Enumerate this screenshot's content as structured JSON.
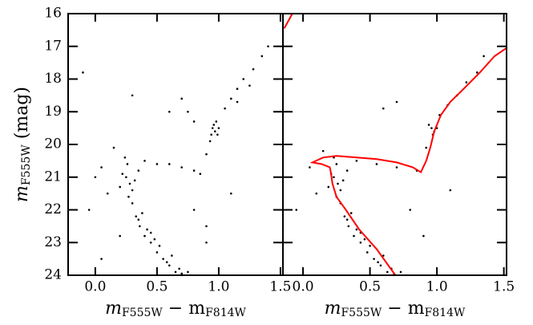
{
  "chart_data": [
    {
      "type": "scatter",
      "ylabel": {
        "base": "m",
        "subscript": "F555W",
        "suffix": " (mag)"
      },
      "xlabel": {
        "base": "m",
        "subscript": "F555W",
        "middle": " − m",
        "subscript2": "F814W"
      },
      "xlim": [
        -0.22,
        1.52
      ],
      "ylim": [
        24,
        16
      ],
      "xticks": [
        {
          "value": 0,
          "label": "0.0"
        },
        0.5,
        {
          "value": 1,
          "label": "1.0"
        },
        1.5
      ],
      "yticks": [
        16,
        17,
        18,
        19,
        20,
        21,
        22,
        23,
        24
      ],
      "series": [
        {
          "color": "#000000",
          "x": [
            0.3,
            0.33,
            0.36,
            0.4,
            0.45,
            0.5,
            0.55,
            0.6,
            0.65,
            0.7,
            0.62,
            0.52,
            0.42,
            0.35,
            0.38,
            0.48,
            0.58,
            0.68,
            0.75,
            0.45,
            0.25,
            0.28,
            0.22,
            0.3,
            0.26,
            0.32,
            0.2,
            0.27,
            0.24,
            0.35,
            0.4,
            0.5,
            0.6,
            0.7,
            0.8,
            0.85,
            0.9,
            0.93,
            0.98,
            1.05,
            1.1,
            1.15,
            1.2,
            1.28,
            1.35,
            1.4,
            1.25,
            1.15,
            0.95,
            0.97,
            0.99,
            0.96,
            1.0,
            0.94,
            0.0,
            0.05,
            0.1,
            -0.05,
            0.15,
            0.2,
            0.05,
            0.8,
            0.9,
            1.1,
            0.6,
            0.3,
            -0.1,
            0.9,
            0.7,
            0.75,
            0.8
          ],
          "values": [
            21.8,
            22.2,
            22.5,
            22.8,
            23.0,
            23.3,
            23.5,
            23.7,
            23.9,
            23.95,
            23.4,
            23.1,
            22.6,
            22.3,
            22.1,
            22.9,
            23.6,
            23.8,
            23.9,
            22.7,
            21.0,
            21.2,
            20.9,
            21.4,
            20.6,
            21.1,
            21.3,
            21.6,
            20.4,
            20.8,
            20.5,
            20.6,
            20.6,
            20.7,
            20.8,
            20.9,
            20.3,
            19.9,
            19.3,
            18.9,
            18.6,
            18.3,
            18.0,
            17.7,
            17.3,
            17.0,
            18.2,
            18.7,
            19.5,
            19.6,
            19.7,
            19.4,
            19.5,
            19.7,
            21.0,
            20.7,
            21.5,
            22.0,
            20.1,
            22.8,
            23.5,
            22.0,
            22.5,
            21.5,
            19.0,
            18.5,
            17.8,
            23.0,
            18.6,
            19.0,
            19.3
          ]
        }
      ]
    },
    {
      "type": "scatter",
      "xlabel": {
        "base": "m",
        "subscript": "F555W",
        "middle": " − m",
        "subscript2": "F814W"
      },
      "xlim": [
        -0.15,
        1.52
      ],
      "ylim": [
        24,
        16
      ],
      "xticks": [
        {
          "value": 0,
          "label": "0.0"
        },
        0.5,
        {
          "value": 1,
          "label": "1.0"
        },
        1.5
      ],
      "yticks": [
        16,
        17,
        18,
        19,
        20,
        21,
        22,
        23,
        24
      ],
      "series": [
        {
          "color": "#000000",
          "x": [
            0.28,
            0.31,
            0.34,
            0.38,
            0.43,
            0.48,
            0.53,
            0.58,
            0.63,
            0.68,
            0.6,
            0.5,
            0.4,
            0.33,
            0.36,
            0.46,
            0.56,
            0.66,
            0.73,
            0.43,
            0.23,
            0.26,
            0.21,
            0.28,
            0.25,
            0.3,
            0.19,
            0.25,
            0.23,
            0.33,
            0.4,
            0.55,
            0.7,
            0.85,
            0.92,
            0.97,
            1.02,
            1.08,
            1.15,
            1.22,
            1.3,
            0.96,
            0.98,
            0.94,
            0.97,
            1.0,
            0.05,
            0.1,
            -0.05,
            0.15,
            0.8,
            1.1,
            0.6,
            1.35,
            0.9,
            0.7
          ],
          "values": [
            21.8,
            22.2,
            22.5,
            22.8,
            23.0,
            23.3,
            23.5,
            23.7,
            23.9,
            23.95,
            23.4,
            23.1,
            22.6,
            22.3,
            22.1,
            22.9,
            23.6,
            23.8,
            23.9,
            22.7,
            21.0,
            21.2,
            20.9,
            21.4,
            20.6,
            21.1,
            21.3,
            21.6,
            20.4,
            20.8,
            20.5,
            20.6,
            20.7,
            20.8,
            20.1,
            19.7,
            19.1,
            18.8,
            18.5,
            18.1,
            17.8,
            19.5,
            19.6,
            19.4,
            19.7,
            19.5,
            20.7,
            21.5,
            22.0,
            20.2,
            22.0,
            21.4,
            18.9,
            17.3,
            22.8,
            18.7
          ]
        },
        {
          "color": "#ff0000",
          "kind": "line",
          "x": [
            0.69,
            0.55,
            0.42,
            0.32,
            0.25,
            0.22,
            0.21,
            0.2,
            0.14,
            0.07,
            0.15,
            0.25,
            0.4,
            0.55,
            0.7,
            0.82,
            0.88,
            0.92,
            0.95,
            0.98,
            1.03,
            1.1,
            1.2,
            1.32,
            1.43,
            1.52
          ],
          "values": [
            24.0,
            23.2,
            22.6,
            22.0,
            21.6,
            21.2,
            20.9,
            20.7,
            20.6,
            20.55,
            20.4,
            20.35,
            20.4,
            20.45,
            20.55,
            20.7,
            20.85,
            20.5,
            20.1,
            19.6,
            19.1,
            18.7,
            18.3,
            17.8,
            17.3,
            17.05
          ]
        },
        {
          "color": "#ff0000",
          "kind": "line",
          "x": [
            -0.14,
            -0.08
          ],
          "values": [
            16.45,
            16.0
          ]
        }
      ]
    }
  ]
}
